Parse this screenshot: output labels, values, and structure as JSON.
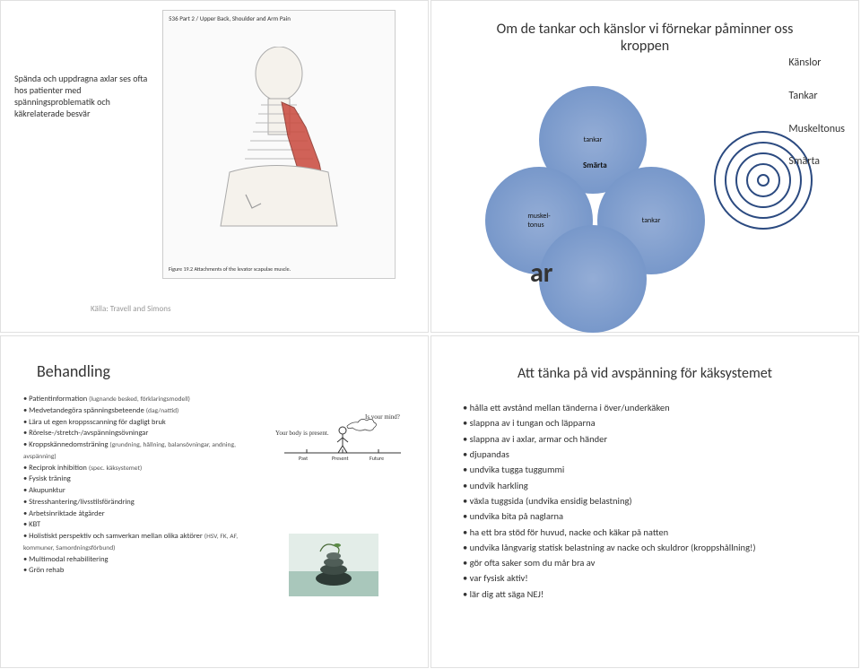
{
  "slide_tl": {
    "caption_text": "Spända och uppdragna axlar ses ofta hos patienter med spänningsproblematik och käkrelaterade besvär",
    "image_header": "536   Part 2 / Upper Back, Shoulder and Arm Pain",
    "figure_caption": "Figure 19.2 Attachments of the levator scapulae muscle.",
    "source": "Källa: Travell and Simons"
  },
  "slide_tr": {
    "title": "Om de tankar och känslor vi förnekar påminner oss kroppen",
    "legend": [
      "Känslor",
      "Tankar",
      "Muskeltonus",
      "Smärta"
    ],
    "circle_labels": {
      "top": "tankar",
      "left": "muskel-\ntonus",
      "right": "tankar",
      "center": "Smärta"
    },
    "ar_text": "ar",
    "colors": {
      "circle_fill": "#6c8fc5",
      "circle_line": "#6c8fc5",
      "ring_outer": "#2b4a80",
      "ring_inner": "#fff"
    }
  },
  "slide_bl": {
    "title": "Behandling",
    "items": [
      {
        "text": "Patientinformation",
        "sub": "(lugnande besked, förklaringsmodell)"
      },
      {
        "text": "Medvetandegöra spänningsbeteende",
        "sub": "(dag/nattid)"
      },
      {
        "text": "Lära ut egen kroppsscanning för dagligt bruk"
      },
      {
        "text": "Rörelse-/stretch-/avspänningsövningar"
      },
      {
        "text": "Kroppskännedomsträning",
        "sub": "(grundning, hållning, balansövningar, andning, avspänning)"
      },
      {
        "text": "Reciprok inhibition",
        "sub": "(spec. käksystemet)"
      },
      {
        "text": "Fysisk träning"
      },
      {
        "text": "Akupunktur"
      },
      {
        "text": "Stresshantering/livsstilsförändring"
      },
      {
        "text": "Arbetsinriktade åtgärder"
      },
      {
        "text": "KBT"
      },
      {
        "text": "Holistiskt perspektiv och samverkan mellan olika aktörer",
        "sub": "(HSV, FK, AF, kommuner, Samordningsförbund)"
      },
      {
        "text": "Multimodal rehabilitering"
      },
      {
        "text": "Grön rehab"
      }
    ],
    "mindful_img": {
      "past": "Past",
      "present": "Present",
      "future": "Future",
      "body_text": "Your body is present.",
      "mind_text": "Is your mind?"
    }
  },
  "slide_br": {
    "title": "Att tänka på vid avspänning för käksystemet",
    "items": [
      "hålla ett avstånd mellan tänderna i över/underkäken",
      "slappna av i tungan och läpparna",
      "slappna av i axlar, armar och händer",
      "djupandas",
      "undvika tugga tuggummi",
      "undvik harkling",
      "växla tuggsida (undvika ensidig belastning)",
      "undvika bita på naglarna",
      "ha ett bra stöd för huvud, nacke och käkar på natten",
      "undvika långvarig statisk belastning av nacke och skuldror (kroppshållning!)",
      "gör ofta saker som du mår bra av",
      "var fysisk aktiv!",
      "lär dig att säga NEJ!"
    ]
  }
}
